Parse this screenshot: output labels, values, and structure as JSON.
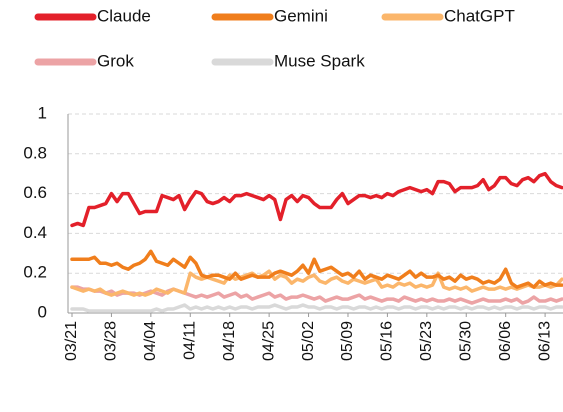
{
  "chart_data": {
    "type": "line",
    "categories": [
      "03/21",
      null,
      null,
      null,
      null,
      null,
      null,
      "03/28",
      null,
      null,
      null,
      null,
      null,
      null,
      "04/04",
      null,
      null,
      null,
      null,
      null,
      null,
      "04/11",
      null,
      null,
      null,
      null,
      null,
      null,
      "04/18",
      null,
      null,
      null,
      null,
      null,
      null,
      "04/25",
      null,
      null,
      null,
      null,
      null,
      null,
      "05/02",
      null,
      null,
      null,
      null,
      null,
      null,
      "05/09",
      null,
      null,
      null,
      null,
      null,
      null,
      "05/16",
      null,
      null,
      null,
      null,
      null,
      null,
      "05/23",
      null,
      null,
      null,
      null,
      null,
      null,
      "05/30",
      null,
      null,
      null,
      null,
      null,
      null,
      "06/06",
      null,
      null,
      null,
      null,
      null,
      null,
      "06/13",
      null,
      null,
      null
    ],
    "series": [
      {
        "name": "Claude",
        "color": "#e3202a",
        "values": [
          0.44,
          0.45,
          0.44,
          0.53,
          0.53,
          0.54,
          0.55,
          0.6,
          0.56,
          0.6,
          0.6,
          0.55,
          0.5,
          0.51,
          0.51,
          0.51,
          0.59,
          0.58,
          0.57,
          0.59,
          0.52,
          0.57,
          0.61,
          0.6,
          0.56,
          0.55,
          0.56,
          0.58,
          0.56,
          0.59,
          0.59,
          0.6,
          0.59,
          0.58,
          0.57,
          0.59,
          0.57,
          0.47,
          0.57,
          0.59,
          0.56,
          0.59,
          0.58,
          0.55,
          0.53,
          0.53,
          0.53,
          0.57,
          0.6,
          0.55,
          0.57,
          0.59,
          0.59,
          0.58,
          0.59,
          0.58,
          0.6,
          0.59,
          0.61,
          0.62,
          0.63,
          0.62,
          0.61,
          0.62,
          0.6,
          0.66,
          0.66,
          0.65,
          0.61,
          0.63,
          0.63,
          0.63,
          0.64,
          0.67,
          0.62,
          0.64,
          0.68,
          0.68,
          0.65,
          0.64,
          0.67,
          0.68,
          0.66,
          0.69,
          0.7,
          0.66,
          0.64,
          0.63
        ]
      },
      {
        "name": "Gemini",
        "color": "#f07e1c",
        "values": [
          0.27,
          0.27,
          0.27,
          0.27,
          0.28,
          0.25,
          0.25,
          0.24,
          0.25,
          0.23,
          0.22,
          0.24,
          0.25,
          0.27,
          0.31,
          0.26,
          0.25,
          0.24,
          0.27,
          0.25,
          0.23,
          0.28,
          0.25,
          0.19,
          0.18,
          0.19,
          0.19,
          0.18,
          0.17,
          0.2,
          0.17,
          0.18,
          0.19,
          0.18,
          0.18,
          0.18,
          0.2,
          0.21,
          0.2,
          0.19,
          0.21,
          0.24,
          0.2,
          0.27,
          0.21,
          0.22,
          0.23,
          0.21,
          0.19,
          0.2,
          0.18,
          0.21,
          0.17,
          0.19,
          0.18,
          0.17,
          0.19,
          0.18,
          0.17,
          0.19,
          0.21,
          0.18,
          0.2,
          0.18,
          0.18,
          0.19,
          0.17,
          0.18,
          0.16,
          0.19,
          0.17,
          0.18,
          0.17,
          0.15,
          0.16,
          0.15,
          0.17,
          0.22,
          0.15,
          0.13,
          0.14,
          0.15,
          0.13,
          0.16,
          0.14,
          0.15,
          0.14,
          0.14
        ]
      },
      {
        "name": "ChatGPT",
        "color": "#fbb66b",
        "values": [
          0.13,
          0.12,
          0.11,
          0.12,
          0.11,
          0.12,
          0.1,
          0.09,
          0.1,
          0.11,
          0.1,
          0.09,
          0.1,
          0.09,
          0.1,
          0.12,
          0.11,
          0.1,
          0.12,
          0.11,
          0.1,
          0.2,
          0.18,
          0.17,
          0.18,
          0.17,
          0.16,
          0.15,
          0.19,
          0.17,
          0.18,
          0.19,
          0.2,
          0.18,
          0.19,
          0.21,
          0.17,
          0.19,
          0.18,
          0.15,
          0.17,
          0.16,
          0.18,
          0.19,
          0.16,
          0.15,
          0.17,
          0.18,
          0.16,
          0.15,
          0.17,
          0.16,
          0.15,
          0.16,
          0.17,
          0.13,
          0.14,
          0.13,
          0.15,
          0.14,
          0.15,
          0.13,
          0.14,
          0.13,
          0.14,
          0.2,
          0.13,
          0.12,
          0.13,
          0.12,
          0.13,
          0.11,
          0.12,
          0.13,
          0.12,
          0.12,
          0.13,
          0.12,
          0.13,
          0.12,
          0.13,
          0.14,
          0.13,
          0.13,
          0.14,
          0.13,
          0.14,
          0.17
        ]
      },
      {
        "name": "Grok",
        "color": "#eca3a5",
        "values": [
          0.13,
          0.13,
          0.12,
          0.12,
          0.11,
          0.11,
          0.1,
          0.11,
          0.09,
          0.1,
          0.1,
          0.1,
          0.09,
          0.1,
          0.11,
          0.1,
          0.09,
          0.11,
          0.12,
          0.11,
          0.1,
          0.09,
          0.08,
          0.09,
          0.08,
          0.09,
          0.1,
          0.08,
          0.09,
          0.1,
          0.08,
          0.09,
          0.07,
          0.08,
          0.09,
          0.1,
          0.08,
          0.09,
          0.07,
          0.08,
          0.08,
          0.09,
          0.08,
          0.07,
          0.08,
          0.06,
          0.07,
          0.08,
          0.07,
          0.07,
          0.08,
          0.09,
          0.07,
          0.08,
          0.07,
          0.06,
          0.07,
          0.07,
          0.06,
          0.08,
          0.07,
          0.06,
          0.07,
          0.06,
          0.07,
          0.06,
          0.06,
          0.07,
          0.06,
          0.07,
          0.06,
          0.05,
          0.06,
          0.07,
          0.06,
          0.06,
          0.06,
          0.07,
          0.06,
          0.07,
          0.05,
          0.06,
          0.08,
          0.06,
          0.06,
          0.07,
          0.06,
          0.07
        ]
      },
      {
        "name": "Muse Spark",
        "color": "#d9d9d9",
        "values": [
          0.02,
          0.02,
          0.02,
          0.01,
          0.01,
          0.01,
          0.01,
          0.01,
          0.01,
          0.01,
          0.01,
          0.01,
          0.01,
          0.01,
          0.01,
          0.02,
          0.01,
          0.02,
          0.02,
          0.03,
          0.04,
          0.02,
          0.03,
          0.02,
          0.03,
          0.02,
          0.03,
          0.02,
          0.03,
          0.02,
          0.03,
          0.03,
          0.02,
          0.03,
          0.03,
          0.03,
          0.04,
          0.03,
          0.02,
          0.03,
          0.03,
          0.04,
          0.03,
          0.03,
          0.02,
          0.03,
          0.03,
          0.02,
          0.03,
          0.03,
          0.02,
          0.03,
          0.03,
          0.02,
          0.03,
          0.02,
          0.03,
          0.03,
          0.02,
          0.03,
          0.03,
          0.02,
          0.03,
          0.03,
          0.02,
          0.03,
          0.02,
          0.03,
          0.03,
          0.02,
          0.03,
          0.02,
          0.03,
          0.03,
          0.02,
          0.03,
          0.02,
          0.03,
          0.03,
          0.02,
          0.03,
          0.03,
          0.02,
          0.03,
          0.03,
          0.02,
          0.03,
          0.03
        ]
      }
    ],
    "ylim": [
      0,
      1
    ],
    "yticks": [
      0,
      0.2,
      0.4,
      0.6,
      0.8,
      1
    ],
    "grid": true,
    "legend": "top"
  }
}
